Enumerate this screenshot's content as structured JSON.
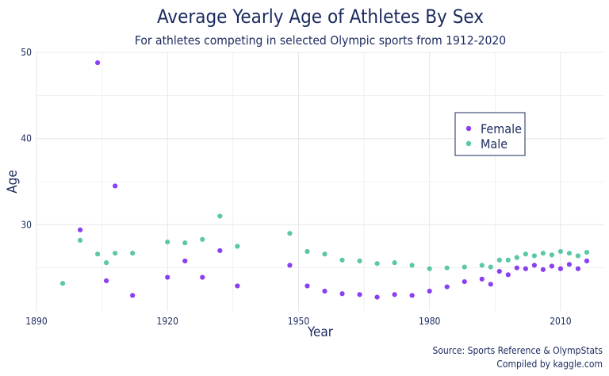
{
  "chart_data": {
    "type": "scatter",
    "title": "Average Yearly Age of Athletes By Sex",
    "subtitle": "For athletes competing in selected Olympic sports from 1912-2020",
    "xlabel": "Year",
    "ylabel": "Age",
    "xlim": [
      1890,
      2020
    ],
    "ylim": [
      20,
      50
    ],
    "x_ticks": [
      1890,
      1920,
      1950,
      1980,
      2010
    ],
    "y_ticks": [
      30,
      40,
      50
    ],
    "grid": true,
    "legend_position": "right",
    "series": [
      {
        "name": "Female",
        "color": "#8a3ff0",
        "points": [
          [
            1900,
            29.4
          ],
          [
            1904,
            48.8
          ],
          [
            1906,
            23.5
          ],
          [
            1908,
            34.5
          ],
          [
            1912,
            21.8
          ],
          [
            1920,
            23.9
          ],
          [
            1924,
            25.8
          ],
          [
            1928,
            23.9
          ],
          [
            1932,
            27.0
          ],
          [
            1936,
            22.9
          ],
          [
            1948,
            25.3
          ],
          [
            1952,
            22.9
          ],
          [
            1956,
            22.3
          ],
          [
            1960,
            22.0
          ],
          [
            1964,
            21.9
          ],
          [
            1968,
            21.6
          ],
          [
            1972,
            21.9
          ],
          [
            1976,
            21.8
          ],
          [
            1980,
            22.3
          ],
          [
            1984,
            22.8
          ],
          [
            1988,
            23.4
          ],
          [
            1992,
            23.7
          ],
          [
            1994,
            23.1
          ],
          [
            1996,
            24.6
          ],
          [
            1998,
            24.2
          ],
          [
            2000,
            25.0
          ],
          [
            2002,
            24.9
          ],
          [
            2004,
            25.3
          ],
          [
            2006,
            24.8
          ],
          [
            2008,
            25.2
          ],
          [
            2010,
            24.9
          ],
          [
            2012,
            25.4
          ],
          [
            2014,
            24.9
          ],
          [
            2016,
            25.8
          ]
        ]
      },
      {
        "name": "Male",
        "color": "#5cc7a8",
        "points": [
          [
            1896,
            23.2
          ],
          [
            1900,
            28.2
          ],
          [
            1904,
            26.6
          ],
          [
            1906,
            25.6
          ],
          [
            1908,
            26.7
          ],
          [
            1912,
            26.7
          ],
          [
            1920,
            28.0
          ],
          [
            1924,
            27.9
          ],
          [
            1928,
            28.3
          ],
          [
            1932,
            31.0
          ],
          [
            1936,
            27.5
          ],
          [
            1948,
            29.0
          ],
          [
            1952,
            26.9
          ],
          [
            1956,
            26.6
          ],
          [
            1960,
            25.9
          ],
          [
            1964,
            25.8
          ],
          [
            1968,
            25.5
          ],
          [
            1972,
            25.6
          ],
          [
            1976,
            25.3
          ],
          [
            1980,
            24.9
          ],
          [
            1984,
            25.0
          ],
          [
            1988,
            25.1
          ],
          [
            1992,
            25.3
          ],
          [
            1994,
            25.1
          ],
          [
            1996,
            25.9
          ],
          [
            1998,
            25.9
          ],
          [
            2000,
            26.2
          ],
          [
            2002,
            26.6
          ],
          [
            2004,
            26.4
          ],
          [
            2006,
            26.7
          ],
          [
            2008,
            26.5
          ],
          [
            2010,
            26.9
          ],
          [
            2012,
            26.7
          ],
          [
            2014,
            26.4
          ],
          [
            2016,
            26.8
          ]
        ]
      }
    ],
    "source_lines": [
      "Source: Sports Reference & OlympStats",
      "Compiled by kaggle.com"
    ]
  },
  "colors": {
    "text": "#1b2a5e",
    "grid": "#e8e8ea"
  }
}
